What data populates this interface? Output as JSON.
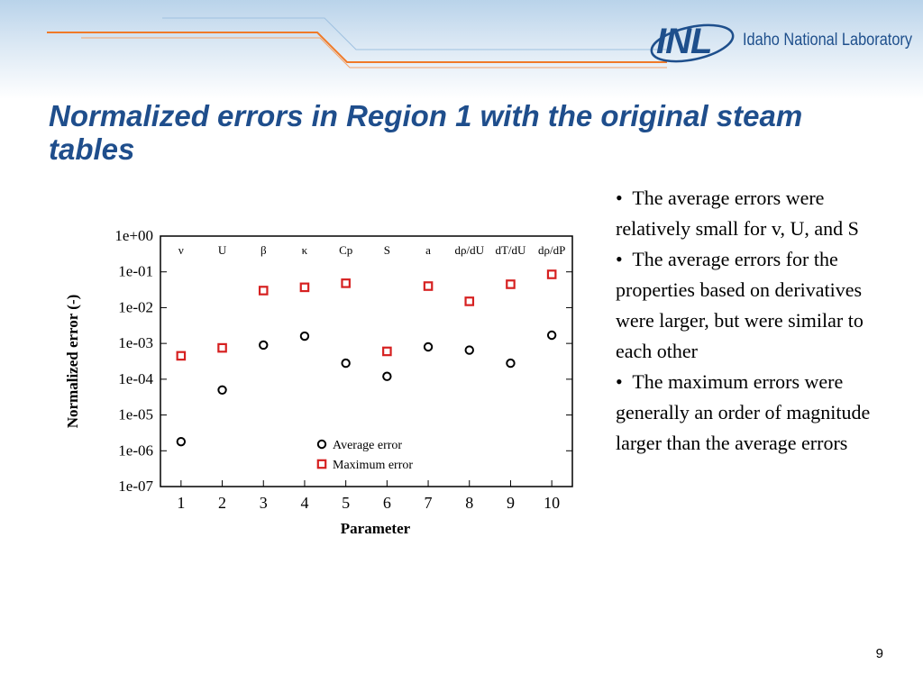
{
  "slide": {
    "title": "Normalized errors in Region 1 with the original steam tables",
    "page_number": "9"
  },
  "logo": {
    "mark": "INL",
    "text": "Idaho National Laboratory",
    "colors": {
      "primary": "#1e4f8c"
    }
  },
  "bullets": [
    "The average errors were relatively small for v, U, and S",
    "The average errors for the properties based on derivatives were larger, but were similar to each other",
    "The maximum errors were generally an order of magnitude larger than the average errors"
  ],
  "chart_data": {
    "type": "scatter",
    "title": "",
    "xlabel": "Parameter",
    "ylabel": "Normalized error (-)",
    "yscale": "log",
    "ylim": [
      1e-07,
      1
    ],
    "xlim": [
      0.5,
      10.5
    ],
    "grid": false,
    "legend_position": "bottom-right",
    "x_ticks": [
      "1",
      "2",
      "3",
      "4",
      "5",
      "6",
      "7",
      "8",
      "9",
      "10"
    ],
    "y_ticks": [
      "1e+00",
      "1e-01",
      "1e-02",
      "1e-03",
      "1e-04",
      "1e-05",
      "1e-06",
      "1e-07"
    ],
    "top_labels": [
      "ν",
      "U",
      "β",
      "κ",
      "Cp",
      "S",
      "a",
      "dρ/dU",
      "dT/dU",
      "dρ/dP"
    ],
    "series": [
      {
        "name": "Average error",
        "marker": "circle",
        "color": "#000000",
        "x": [
          1,
          2,
          3,
          4,
          5,
          6,
          7,
          8,
          9,
          10
        ],
        "y": [
          1.8e-06,
          5e-05,
          0.0009,
          0.0016,
          0.00028,
          0.00012,
          0.0008,
          0.00065,
          0.00028,
          0.0017
        ]
      },
      {
        "name": "Maximum error",
        "marker": "square",
        "color": "#d62020",
        "x": [
          1,
          2,
          3,
          4,
          5,
          6,
          7,
          8,
          9,
          10
        ],
        "y": [
          0.00045,
          0.00075,
          0.03,
          0.037,
          0.048,
          0.0006,
          0.04,
          0.015,
          0.045,
          0.085
        ]
      }
    ]
  }
}
